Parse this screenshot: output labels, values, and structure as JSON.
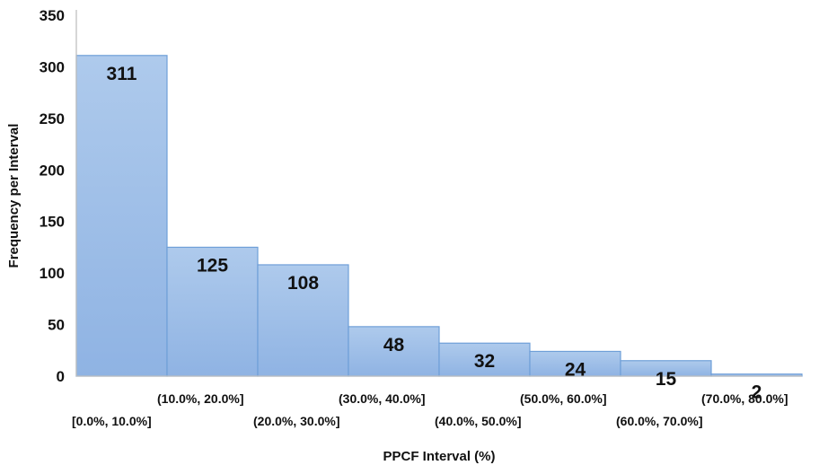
{
  "chart_data": {
    "type": "bar",
    "title": "",
    "xlabel": "PPCF  Interval (%)",
    "ylabel": "Frequency per Interval",
    "ylim": [
      0,
      350
    ],
    "yticks": [
      "0",
      "50",
      "100",
      "150",
      "200",
      "250",
      "300",
      "350"
    ],
    "categories": [
      "[0.0%, 10.0%]",
      "(10.0%, 20.0%]",
      "(20.0%, 30.0%]",
      "(30.0%, 40.0%]",
      "(40.0%, 50.0%]",
      "(50.0%, 60.0%]",
      "(60.0%, 70.0%]",
      "(70.0%, 80.0%]"
    ],
    "values": [
      311,
      125,
      108,
      48,
      32,
      24,
      15,
      2
    ],
    "grid": false,
    "legend": "none",
    "colors": {
      "bar_top": "#aecaec",
      "bar_bottom": "#8fb3e3",
      "bar_edge": "#6f9fd8",
      "axis": "#bfbfbf"
    }
  }
}
